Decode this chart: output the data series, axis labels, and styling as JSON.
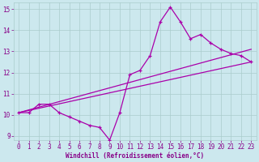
{
  "xlabel": "Windchill (Refroidissement éolien,°C)",
  "bg_color": "#cce8ee",
  "grid_color": "#aacccc",
  "line_color": "#aa00aa",
  "xlim": [
    -0.5,
    23.5
  ],
  "ylim": [
    8.8,
    15.3
  ],
  "xticks": [
    0,
    1,
    2,
    3,
    4,
    5,
    6,
    7,
    8,
    9,
    10,
    11,
    12,
    13,
    14,
    15,
    16,
    17,
    18,
    19,
    20,
    21,
    22,
    23
  ],
  "yticks": [
    9,
    10,
    11,
    12,
    13,
    14,
    15
  ],
  "series1_x": [
    0,
    1,
    2,
    3,
    4,
    5,
    6,
    7,
    8,
    9,
    10,
    11,
    12,
    13,
    14,
    15,
    16,
    17,
    18,
    19,
    20,
    21,
    22,
    23
  ],
  "series1_y": [
    10.1,
    10.1,
    10.5,
    10.5,
    10.1,
    9.9,
    9.7,
    9.5,
    9.4,
    8.8,
    10.1,
    11.9,
    12.1,
    12.8,
    14.4,
    15.1,
    14.4,
    13.6,
    13.8,
    13.4,
    13.1,
    12.9,
    12.8,
    12.5
  ],
  "series2_x": [
    0,
    23
  ],
  "series2_y": [
    10.1,
    12.5
  ],
  "series3_x": [
    0,
    23
  ],
  "series3_y": [
    10.1,
    13.1
  ],
  "font_color": "#880088",
  "tick_fontsize": 5.5,
  "xlabel_fontsize": 5.5,
  "linewidth": 0.9,
  "marker_size": 3.5
}
